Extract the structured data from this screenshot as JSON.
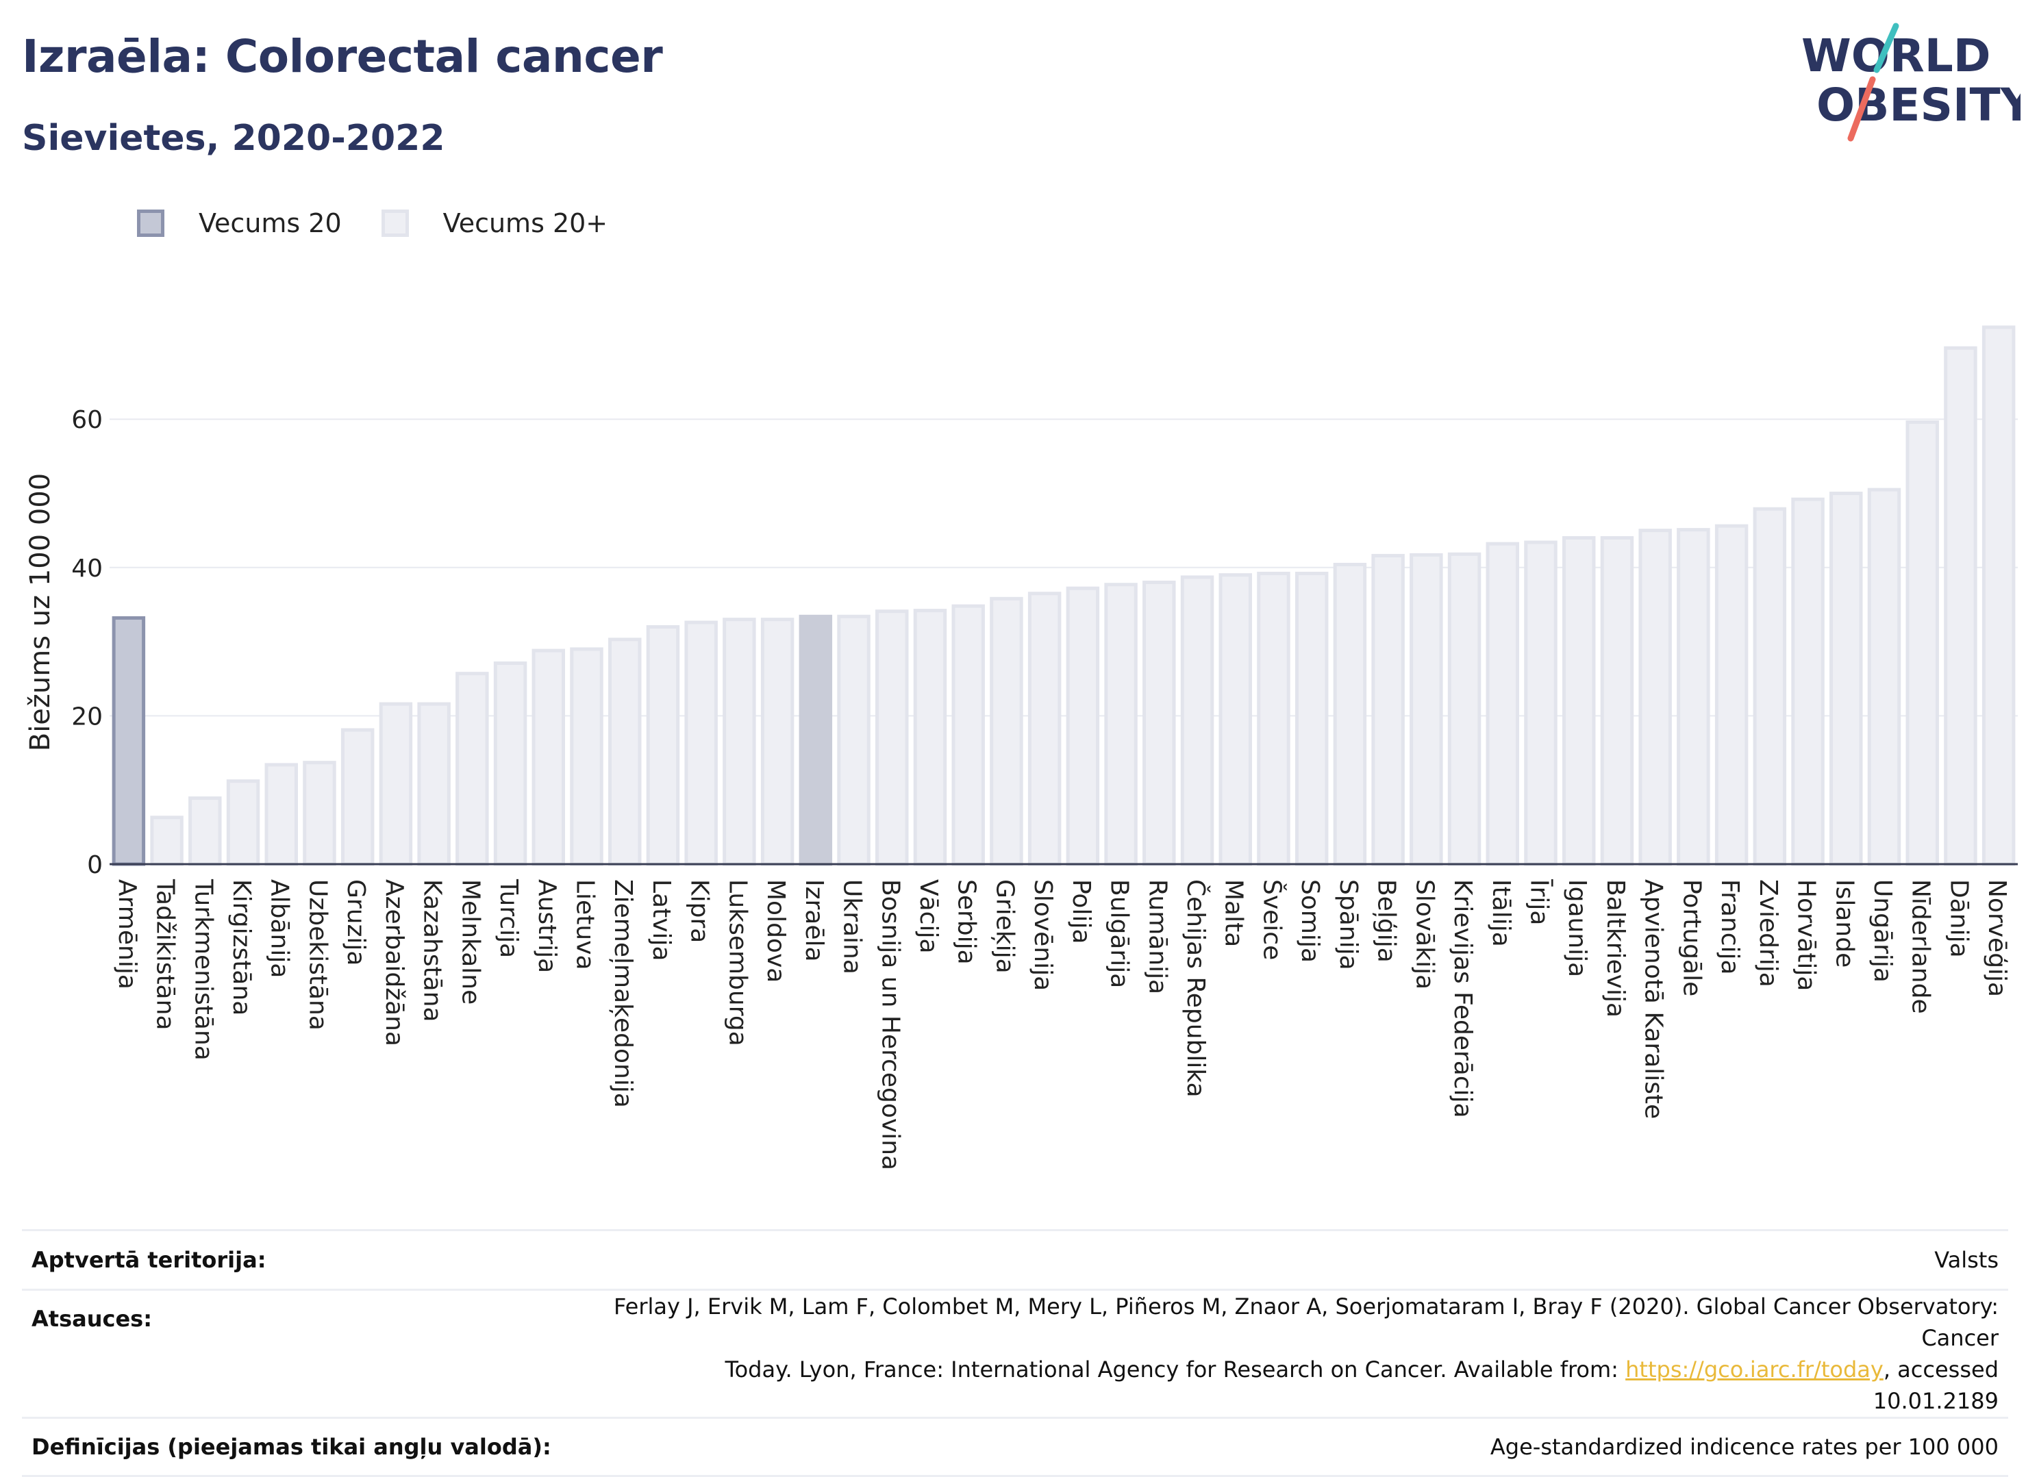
{
  "header": {
    "title": "Izraēla: Colorectal cancer",
    "subtitle": "Sievietes, 2020-2022"
  },
  "logo": {
    "line1": "WORLD",
    "line2": "OBESITY",
    "colors": {
      "text": "#2b3560",
      "slash_teal": "#3fbfbf",
      "slash_coral": "#ec6b5e"
    }
  },
  "legend": [
    {
      "label": "Vecums 20",
      "fill": "#c4c8d6",
      "border": "#8c93ad"
    },
    {
      "label": "Vecums 20+",
      "fill": "#eeeff4",
      "border": "#e2e4ec"
    }
  ],
  "chart_data": {
    "type": "bar",
    "ylabel": "Biežums uz 100 000",
    "ylim": [
      0,
      75
    ],
    "yticks": [
      0,
      20,
      40,
      60
    ],
    "grid": true,
    "highlight": "Izraēla",
    "categories": [
      "Armēnija",
      "Tadžikistāna",
      "Turkmenistāna",
      "Kirgizstāna",
      "Albānija",
      "Uzbekistāna",
      "Gruzija",
      "Azerbaidžāna",
      "Kazahstāna",
      "Melnkalne",
      "Turcija",
      "Austrija",
      "Lietuva",
      "Ziemeļmaķedonija",
      "Latvija",
      "Kipra",
      "Luksemburga",
      "Moldova",
      "Izraēla",
      "Ukraina",
      "Bosnija un Hercegovina",
      "Vācija",
      "Serbija",
      "Grieķija",
      "Slovēnija",
      "Polija",
      "Bulgārija",
      "Rumānija",
      "Čehijas Republika",
      "Malta",
      "Šveice",
      "Somija",
      "Spānija",
      "Beļģija",
      "Slovākija",
      "Krievijas Federācija",
      "Itālija",
      "Īrija",
      "Igaunija",
      "Baltkrievija",
      "Apvienotā Karaliste",
      "Portugāle",
      "Francija",
      "Zviedrija",
      "Horvātija",
      "Islande",
      "Ungārija",
      "Nīderlande",
      "Dānija",
      "Norvēģija"
    ],
    "series": [
      {
        "name": "Vecums 20",
        "color": "#c4c8d6",
        "border": "#8c93ad",
        "values": [
          33.2,
          null,
          null,
          null,
          null,
          null,
          null,
          null,
          null,
          null,
          null,
          null,
          null,
          null,
          null,
          null,
          null,
          null,
          null,
          null,
          null,
          null,
          null,
          null,
          null,
          null,
          null,
          null,
          null,
          null,
          null,
          null,
          null,
          null,
          null,
          null,
          null,
          null,
          null,
          null,
          null,
          null,
          null,
          null,
          null,
          null,
          null,
          null,
          null,
          null
        ]
      },
      {
        "name": "Vecums 20+",
        "color": "#eeeff4",
        "border": "#e2e4ec",
        "highlight_color": "#c9ccd8",
        "values": [
          null,
          6.3,
          8.9,
          11.2,
          13.4,
          13.7,
          18.1,
          21.6,
          21.6,
          25.7,
          27.1,
          28.8,
          29.0,
          30.3,
          32.0,
          32.6,
          33.0,
          33.0,
          33.4,
          33.4,
          34.1,
          34.2,
          34.8,
          35.8,
          36.5,
          37.2,
          37.7,
          38.0,
          38.7,
          39.0,
          39.2,
          39.2,
          40.4,
          41.6,
          41.7,
          41.8,
          43.2,
          43.4,
          44.0,
          44.0,
          45.0,
          45.1,
          45.6,
          47.9,
          49.2,
          50.0,
          50.5,
          59.6,
          69.6,
          72.4
        ]
      }
    ]
  },
  "info": {
    "territory_label": "Aptvertā teritorija:",
    "territory_value": "Valsts",
    "sources_label": "Atsauces:",
    "sources_line1": "Ferlay J, Ervik M, Lam F, Colombet M, Mery L, Piñeros M, Znaor A, Soerjomataram I, Bray F (2020). Global Cancer Observatory: Cancer",
    "sources_line2_pre": "Today. Lyon, France: International Agency for Research on Cancer. Available from: ",
    "sources_link": "https://gco.iarc.fr/today",
    "sources_line2_post": ", accessed 10.01.2189",
    "definitions_label": "Definīcijas (pieejamas tikai angļu valodā):",
    "definitions_value": "Age-standardized indicence rates per 100 000"
  }
}
